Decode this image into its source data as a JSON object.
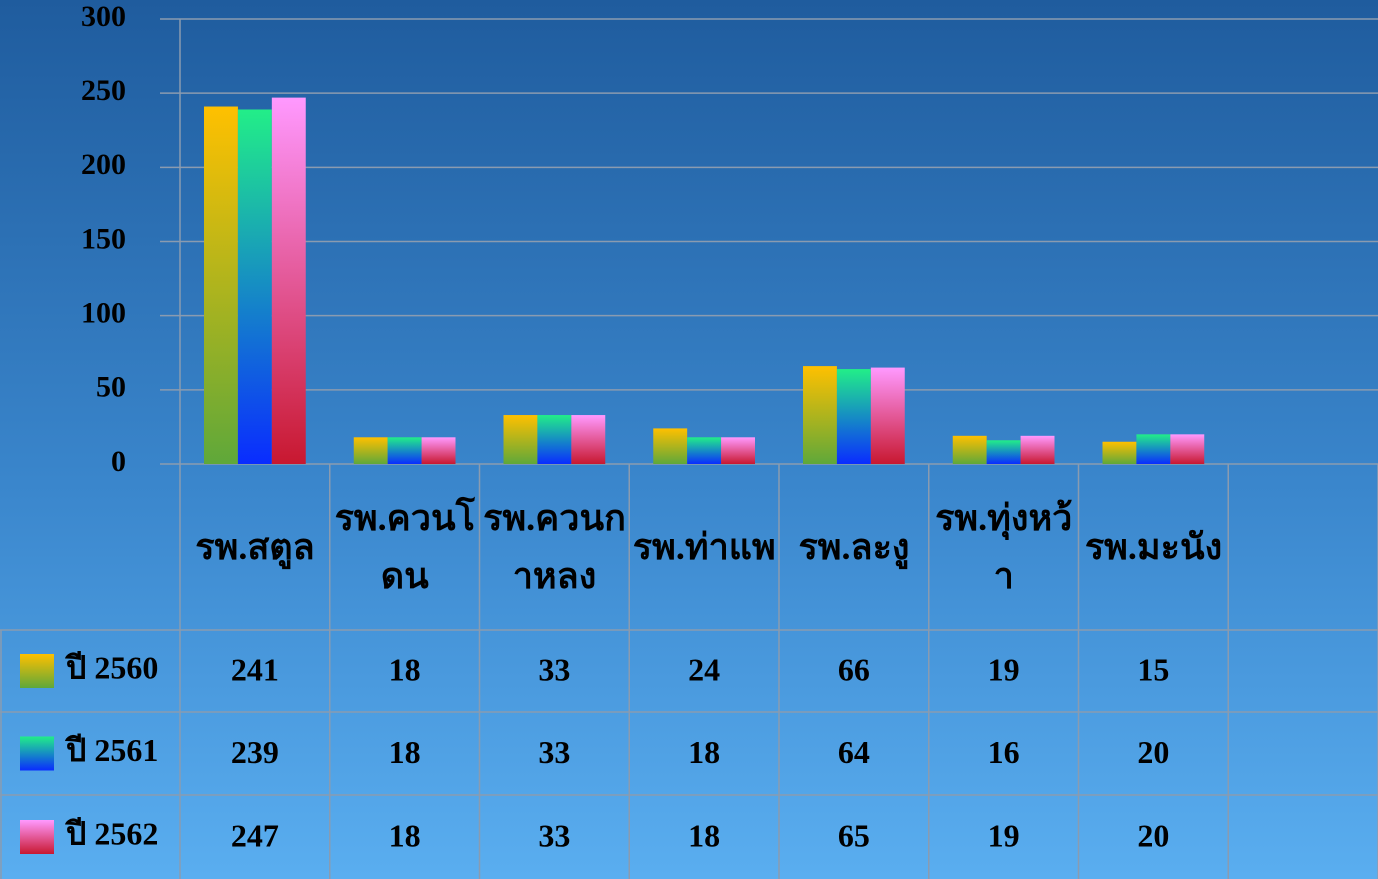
{
  "chart_data": {
    "type": "bar",
    "categories": [
      "รพ.สตูล",
      "รพ.ควนโดน",
      "รพ.ควนกาหลง",
      "รพ.ท่าแพ",
      "รพ.ละงู",
      "รพ.ทุ่งหว้า",
      "รพ.มะนัง",
      null
    ],
    "series": [
      {
        "name": "ปี 2560",
        "color": [
          "#ffc000",
          "#5fa83a"
        ],
        "values": [
          241,
          18,
          33,
          24,
          66,
          19,
          15,
          null
        ]
      },
      {
        "name": "ปี 2561",
        "color": [
          "#22ee88",
          "#0a2cff"
        ],
        "values": [
          239,
          18,
          33,
          18,
          64,
          16,
          20,
          null
        ]
      },
      {
        "name": "ปี 2562",
        "color": [
          "#ff99ff",
          "#c81830"
        ],
        "values": [
          247,
          18,
          33,
          18,
          65,
          19,
          20,
          null
        ]
      }
    ],
    "ylim": [
      0,
      300
    ],
    "yticks": [
      0,
      50,
      100,
      150,
      200,
      250,
      300
    ],
    "grid": true,
    "data_table": true
  }
}
